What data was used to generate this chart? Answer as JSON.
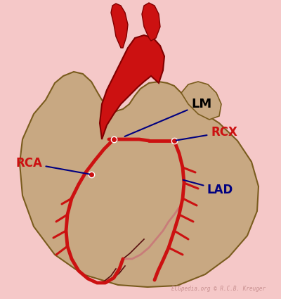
{
  "background_color": "#f5c8c8",
  "heart_body_color": "#c8a882",
  "heart_body_outline": "#7a5c1e",
  "heart_red_color": "#cc1111",
  "artery_red": "#cc1111",
  "artery_dark": "#8B0000",
  "artery_pink": "#c87878",
  "label_LM": "LM",
  "label_RCX": "RCX",
  "label_RCA": "RCA",
  "label_LAD": "LAD",
  "label_color_LM": "#000000",
  "label_color_RCX": "#cc1111",
  "label_color_RCA": "#cc1111",
  "label_color_LAD": "#000080",
  "arrow_color": "#000080",
  "watermark": "ECGpedia.org © R.C.B. Kreuger",
  "watermark_color": "#c89090",
  "heart_x": [
    65,
    48,
    32,
    28,
    32,
    48,
    78,
    118,
    168,
    210,
    252,
    292,
    326,
    352,
    366,
    368,
    358,
    338,
    312,
    292,
    278,
    268,
    258,
    248,
    238,
    226,
    212,
    200,
    192,
    184,
    175,
    165,
    155,
    145,
    138,
    130,
    118,
    105,
    90,
    78,
    65
  ],
  "heart_y": [
    142,
    162,
    198,
    232,
    278,
    322,
    362,
    390,
    405,
    408,
    406,
    390,
    365,
    335,
    300,
    265,
    230,
    200,
    175,
    162,
    152,
    142,
    132,
    122,
    118,
    116,
    118,
    126,
    136,
    148,
    155,
    158,
    152,
    142,
    130,
    116,
    105,
    102,
    108,
    118,
    142
  ],
  "upper_right_bump_x": [
    258,
    268,
    282,
    296,
    308,
    315,
    312,
    298,
    282,
    268,
    258
  ],
  "upper_right_bump_y": [
    132,
    120,
    116,
    120,
    132,
    148,
    165,
    170,
    162,
    148,
    132
  ],
  "red_main_x": [
    145,
    142,
    145,
    152,
    162,
    172,
    182,
    192,
    205,
    218,
    228,
    234,
    232,
    226,
    215,
    205,
    196,
    188,
    180,
    172,
    162,
    152,
    145
  ],
  "red_main_y": [
    198,
    175,
    148,
    128,
    108,
    88,
    68,
    54,
    50,
    54,
    65,
    80,
    100,
    118,
    108,
    116,
    124,
    132,
    140,
    148,
    162,
    178,
    198
  ],
  "left_tube_x": [
    172,
    165,
    162,
    158,
    160,
    165,
    172,
    178,
    182,
    180,
    175,
    172
  ],
  "left_tube_y": [
    68,
    52,
    35,
    18,
    8,
    5,
    8,
    18,
    35,
    52,
    68,
    68
  ],
  "right_tube_x": [
    212,
    205,
    202,
    205,
    212,
    220,
    226,
    228,
    222,
    215,
    212
  ],
  "right_tube_y": [
    54,
    38,
    20,
    8,
    4,
    8,
    20,
    38,
    54,
    58,
    54
  ]
}
